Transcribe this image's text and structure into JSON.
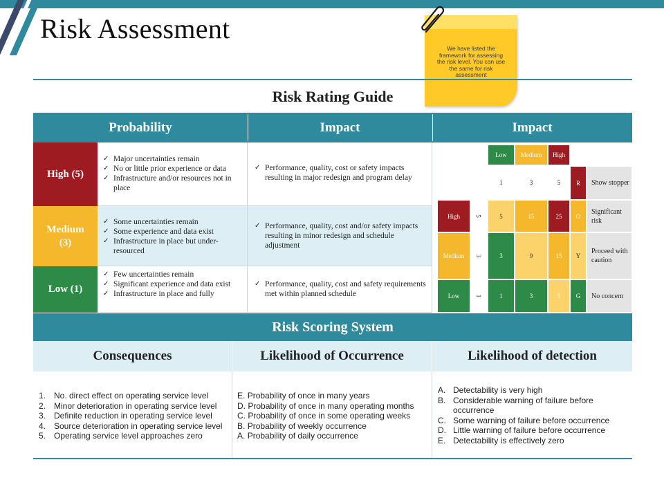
{
  "page": {
    "title": "Risk Assessment",
    "note": "We have listed the framework for assessing the risk level. You can use the same for risk assessment"
  },
  "guide": {
    "title": "Risk Rating Guide",
    "headers": [
      "Probability",
      "Impact",
      "Impact"
    ],
    "rows": [
      {
        "level": "High (5)",
        "color": "#9e1b22",
        "probability": [
          "Major uncertainties remain",
          "No or little prior experience or data",
          "Infrastructure and/or resources not in place"
        ],
        "impact": [
          "Performance, quality, cost or safety impacts resulting in major redesign and program delay"
        ]
      },
      {
        "level": "Medium (3)",
        "color": "#f5b72b",
        "probability": [
          "Some uncertainties remain",
          "Some experience and data exist",
          "Infrastructure in place but under-resourced"
        ],
        "impact": [
          "Performance, quality, cost and/or safety impacts resulting in minor redesign and schedule adjustment"
        ]
      },
      {
        "level": "Low (1)",
        "color": "#2e8b47",
        "probability": [
          "Few uncertainties remain",
          "Significant experience and data exist",
          "Infrastructure in place and fully"
        ],
        "impact": [
          "Performance, quality, cost and safety requirements met within planned schedule"
        ]
      }
    ]
  },
  "matrix": {
    "col_headers": [
      "Low",
      "Medium",
      "High"
    ],
    "col_numbers": [
      "1",
      "3",
      "5"
    ],
    "row_labels": [
      "High",
      "Medium",
      "Low"
    ],
    "row_numbers": [
      "5",
      "3",
      "1"
    ],
    "values": [
      [
        "5",
        "15",
        "25"
      ],
      [
        "3",
        "9",
        "15"
      ],
      [
        "1",
        "3",
        "5"
      ]
    ],
    "codes": [
      "R",
      "O",
      "Y",
      "G"
    ],
    "descriptions": [
      "Show stopper",
      "Significant risk",
      "Proceed with caution",
      "No concern"
    ],
    "colors": {
      "red": "#9e1b22",
      "amber": "#f5b72b",
      "lightamber": "#fcd36b",
      "green": "#2e8b47"
    }
  },
  "scoring": {
    "title": "Risk Scoring System",
    "headers": [
      "Consequences",
      "Likelihood of Occurrence",
      "Likelihood of detection"
    ],
    "consequences": [
      {
        "mark": "1.",
        "text": "No. direct effect on operating service level"
      },
      {
        "mark": "2.",
        "text": "Minor deterioration in operating service level"
      },
      {
        "mark": "3.",
        "text": "Definite reduction in operating service level"
      },
      {
        "mark": "4.",
        "text": "Source deterioration in operating service level"
      },
      {
        "mark": "5.",
        "text": "Operating service level approaches zero"
      }
    ],
    "occurrence": [
      {
        "mark": "E.",
        "text": "Probability of once in many years"
      },
      {
        "mark": "D.",
        "text": "Probability of once in many operating months"
      },
      {
        "mark": "C.",
        "text": "Probability of once in some operating weeks"
      },
      {
        "mark": "B.",
        "text": "Probability of weekly occurrence"
      },
      {
        "mark": "A.",
        "text": "Probability of daily occurrence"
      }
    ],
    "detection": [
      {
        "mark": "A.",
        "text": "Detectability is very high"
      },
      {
        "mark": "B.",
        "text": "Considerable warning of failure before occurrence"
      },
      {
        "mark": "C.",
        "text": "Some warning of failure before occurrence"
      },
      {
        "mark": "D.",
        "text": "Little warning of failure before occurrence"
      },
      {
        "mark": "E.",
        "text": "Detectability is effectively zero"
      }
    ]
  }
}
